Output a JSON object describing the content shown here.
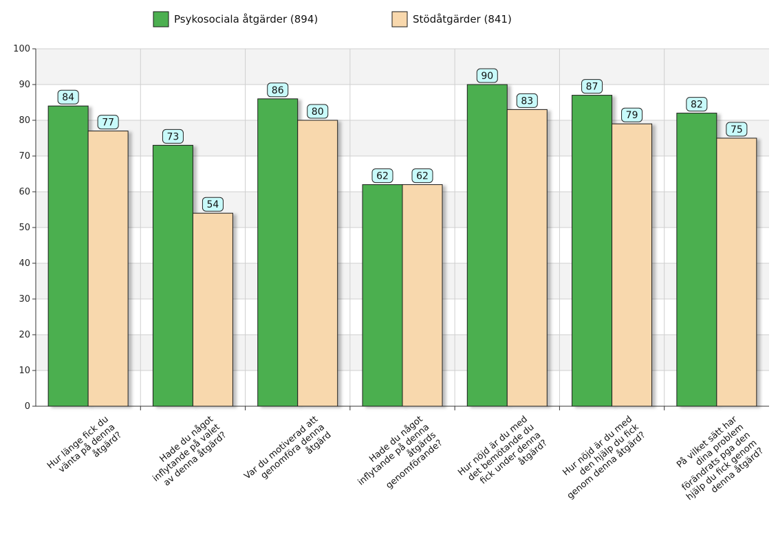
{
  "chart_data": {
    "type": "bar",
    "categories": [
      [
        "Hur länge fick du",
        "vänta på denna",
        "åtgärd?"
      ],
      [
        "Hade du något",
        "inflytande på valet",
        "av denna åtgärd?"
      ],
      [
        "Var du motiverad att",
        "genomföra denna",
        "åtgärd"
      ],
      [
        "Hade du något",
        "inflytande på denna",
        "åtgärds",
        "genomförande?"
      ],
      [
        "Hur nöjd är du med",
        "det bemötande du",
        "fick under denna",
        "åtgärd?"
      ],
      [
        "Hur nöjd är du med",
        "den hjälp du fick",
        "genom denna åtgärd?"
      ],
      [
        "På vilket sätt har",
        "dina problem",
        "förändrats pga den",
        "hjälp du fick genom",
        "denna åtgärd?"
      ]
    ],
    "series": [
      {
        "name": "Psykosociala åtgärder (894)",
        "color": "#4caf50",
        "values": [
          84,
          73,
          86,
          62,
          90,
          87,
          82
        ]
      },
      {
        "name": "Stödåtgärder (841)",
        "color": "#f8d8ad",
        "values": [
          77,
          54,
          80,
          62,
          83,
          79,
          75
        ]
      }
    ],
    "ylim": [
      0,
      100
    ],
    "yticks": [
      0,
      10,
      20,
      30,
      40,
      50,
      60,
      70,
      80,
      90,
      100
    ],
    "grid": true,
    "legend_position": "top-center",
    "data_label_color": "#c8fafa",
    "title": "",
    "xlabel": "",
    "ylabel": ""
  }
}
